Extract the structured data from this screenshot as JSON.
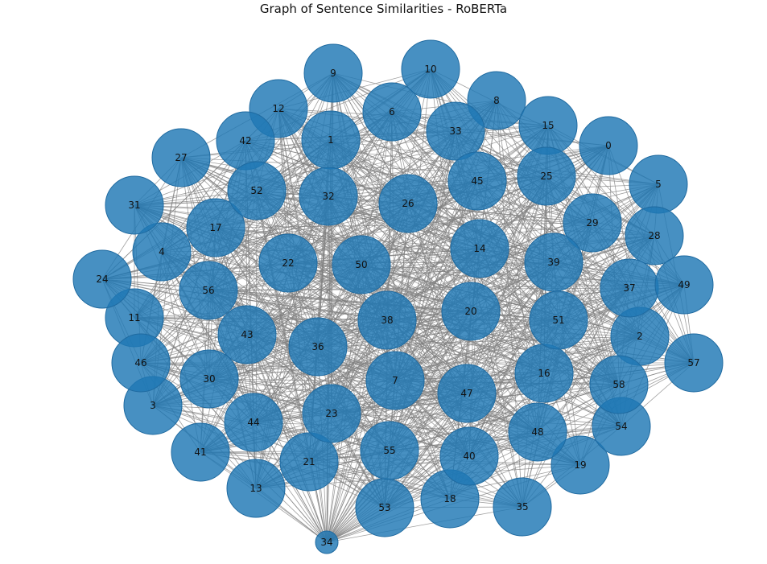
{
  "figure": {
    "title": "Graph of Sentence Similarities - RoBERTa"
  },
  "colors": {
    "node_fill": "#1f77b4",
    "node_stroke": "#1f6aa0",
    "edge": "#808080",
    "label": "#111111",
    "background": "#ffffff"
  },
  "chart_data": {
    "type": "network",
    "title": "Graph of Sentence Similarities - RoBERTa",
    "layout": "spring",
    "node_labels": [
      "0",
      "1",
      "2",
      "3",
      "4",
      "5",
      "6",
      "7",
      "8",
      "9",
      "10",
      "11",
      "12",
      "13",
      "14",
      "15",
      "16",
      "17",
      "18",
      "19",
      "20",
      "21",
      "22",
      "23",
      "24",
      "25",
      "26",
      "27",
      "28",
      "29",
      "30",
      "31",
      "32",
      "33",
      "34",
      "35",
      "36",
      "37",
      "38",
      "39",
      "40",
      "41",
      "42",
      "43",
      "44",
      "45",
      "46",
      "47",
      "48",
      "49",
      "50",
      "51",
      "52",
      "53",
      "54",
      "55",
      "56",
      "57",
      "58"
    ],
    "small_nodes": [
      "34"
    ],
    "edges": "dense (near-complete graph)"
  }
}
